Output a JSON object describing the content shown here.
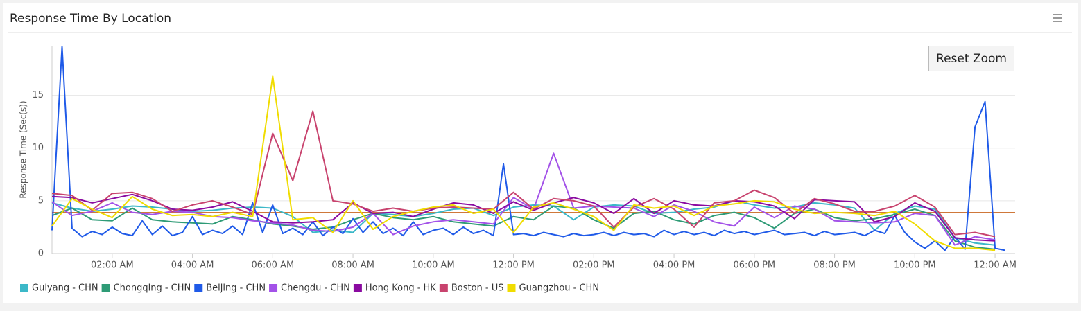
{
  "reset_zoom": "Reset Zoom",
  "chart_data": {
    "type": "line",
    "title": "Response Time By Location",
    "y_label": "Response Time (Sec(s))",
    "xlim": [
      0.5,
      24.5
    ],
    "ylim": [
      0,
      19.7
    ],
    "grid": true,
    "threshold": {
      "value": 3.9,
      "color": "#c8641e"
    },
    "xticks": [
      {
        "value": 2,
        "label": "02:00 AM"
      },
      {
        "value": 4,
        "label": "04:00 AM"
      },
      {
        "value": 6,
        "label": "06:00 AM"
      },
      {
        "value": 8,
        "label": "08:00 AM"
      },
      {
        "value": 10,
        "label": "10:00 AM"
      },
      {
        "value": 12,
        "label": "12:00 PM"
      },
      {
        "value": 14,
        "label": "02:00 PM"
      },
      {
        "value": 16,
        "label": "04:00 PM"
      },
      {
        "value": 18,
        "label": "06:00 PM"
      },
      {
        "value": 20,
        "label": "08:00 PM"
      },
      {
        "value": 22,
        "label": "10:00 PM"
      },
      {
        "value": 24,
        "label": "12:00 AM"
      }
    ],
    "yticks": [
      0,
      5,
      10,
      15
    ],
    "series": [
      {
        "name": "Guiyang - CHN",
        "color": "#3cb8c8",
        "x": [
          0.5,
          1,
          1.5,
          2,
          2.5,
          3,
          3.5,
          4,
          4.5,
          5,
          5.5,
          6,
          6.5,
          7,
          7.5,
          8,
          8.5,
          9,
          9.5,
          10,
          10.5,
          11,
          11.5,
          12,
          12.5,
          13,
          13.5,
          14,
          14.5,
          15,
          15.5,
          16,
          16.5,
          17,
          17.5,
          18,
          18.5,
          19,
          19.5,
          20,
          20.5,
          21,
          21.5,
          22,
          22.5,
          23,
          23.5,
          24
        ],
        "values": [
          4.8,
          4.3,
          4.0,
          4.2,
          4.5,
          4.4,
          4.2,
          4.0,
          4.1,
          4.3,
          4.4,
          4.3,
          3.5,
          2.0,
          2.2,
          2.0,
          3.8,
          3.7,
          3.5,
          3.8,
          4.2,
          4.3,
          3.6,
          4.4,
          4.6,
          4.5,
          3.2,
          4.4,
          4.6,
          4.5,
          3.8,
          3.9,
          4.2,
          4.4,
          5.0,
          4.6,
          4.3,
          4.4,
          4.8,
          4.6,
          4.3,
          2.2,
          3.8,
          4.5,
          4.2,
          1.5,
          1.0,
          0.8
        ]
      },
      {
        "name": "Chongqing - CHN",
        "color": "#2e9b76",
        "x": [
          0.5,
          1,
          1.5,
          2,
          2.5,
          3,
          3.5,
          4,
          4.5,
          5,
          5.5,
          6,
          6.5,
          7,
          7.5,
          8,
          8.5,
          9,
          9.5,
          10,
          10.5,
          11,
          11.5,
          12,
          12.5,
          13,
          13.5,
          14,
          14.5,
          15,
          15.5,
          16,
          16.5,
          17,
          17.5,
          18,
          18.5,
          19,
          19.5,
          20,
          20.5,
          21,
          21.5,
          22,
          22.5,
          23,
          23.5,
          24
        ],
        "values": [
          3.6,
          4.3,
          3.2,
          3.1,
          4.3,
          3.2,
          3.0,
          2.9,
          2.8,
          3.5,
          3.2,
          2.8,
          2.6,
          2.3,
          2.5,
          3.2,
          3.8,
          3.4,
          3.2,
          3.5,
          3.0,
          2.8,
          2.6,
          3.5,
          3.2,
          4.5,
          4.3,
          3.2,
          2.4,
          3.8,
          4.0,
          3.2,
          2.8,
          3.6,
          3.9,
          3.4,
          2.4,
          3.8,
          4.2,
          3.4,
          3.1,
          3.3,
          3.7,
          4.2,
          3.6,
          1.2,
          0.6,
          0.4
        ]
      },
      {
        "name": "Beijing - CHN",
        "color": "#1f5ae8",
        "x": [
          0.5,
          0.75,
          1,
          1.25,
          1.5,
          1.75,
          2,
          2.25,
          2.5,
          2.75,
          3,
          3.25,
          3.5,
          3.75,
          4,
          4.25,
          4.5,
          4.75,
          5,
          5.25,
          5.5,
          5.75,
          6,
          6.25,
          6.5,
          6.75,
          7,
          7.25,
          7.5,
          7.75,
          8,
          8.25,
          8.5,
          8.75,
          9,
          9.25,
          9.5,
          9.75,
          10,
          10.25,
          10.5,
          10.75,
          11,
          11.25,
          11.5,
          11.75,
          12,
          12.25,
          12.5,
          12.75,
          13,
          13.25,
          13.5,
          13.75,
          14,
          14.25,
          14.5,
          14.75,
          15,
          15.25,
          15.5,
          15.75,
          16,
          16.25,
          16.5,
          16.75,
          17,
          17.25,
          17.5,
          17.75,
          18,
          18.25,
          18.5,
          18.75,
          19,
          19.25,
          19.5,
          19.75,
          20,
          20.25,
          20.5,
          20.75,
          21,
          21.25,
          21.5,
          21.75,
          22,
          22.25,
          22.5,
          22.75,
          23,
          23.25,
          23.5,
          23.75,
          24,
          24.25
        ],
        "values": [
          2.2,
          19.6,
          2.4,
          1.6,
          2.1,
          1.8,
          2.5,
          1.9,
          1.7,
          3.1,
          1.8,
          2.6,
          1.7,
          2.0,
          3.5,
          1.8,
          2.2,
          1.9,
          2.6,
          1.8,
          4.8,
          2.0,
          4.6,
          1.9,
          2.4,
          1.8,
          3.0,
          1.7,
          2.5,
          1.9,
          3.3,
          2.0,
          3.0,
          1.9,
          2.4,
          1.7,
          3.0,
          1.8,
          2.2,
          2.4,
          1.8,
          2.5,
          1.9,
          2.2,
          1.7,
          8.5,
          1.8,
          1.9,
          1.7,
          2.0,
          1.8,
          1.6,
          1.9,
          1.7,
          1.8,
          2.0,
          1.7,
          2.0,
          1.8,
          1.9,
          1.6,
          2.2,
          1.8,
          2.1,
          1.8,
          2.0,
          1.7,
          2.2,
          1.9,
          2.1,
          1.8,
          2.0,
          2.2,
          1.8,
          1.9,
          2.0,
          1.7,
          2.1,
          1.8,
          1.9,
          2.0,
          1.7,
          2.2,
          1.9,
          3.6,
          2.0,
          1.1,
          0.5,
          1.2,
          0.3,
          1.6,
          0.4,
          12.0,
          14.4,
          0.5,
          0.3
        ]
      },
      {
        "name": "Chengdu - CHN",
        "color": "#a352e8",
        "x": [
          0.5,
          1,
          1.5,
          2,
          2.5,
          3,
          3.5,
          4,
          4.5,
          5,
          5.5,
          6,
          6.5,
          7,
          7.5,
          8,
          8.5,
          9,
          9.5,
          10,
          10.5,
          11,
          11.5,
          12,
          12.5,
          13,
          13.5,
          14,
          14.5,
          15,
          15.5,
          16,
          16.5,
          17,
          17.5,
          18,
          18.5,
          19,
          19.5,
          20,
          20.5,
          21,
          21.5,
          22,
          22.5,
          23,
          23.5,
          24
        ],
        "values": [
          4.9,
          3.6,
          4.0,
          4.8,
          3.9,
          3.7,
          4.0,
          3.9,
          3.5,
          3.4,
          3.1,
          2.9,
          2.7,
          2.2,
          2.1,
          2.5,
          3.8,
          1.8,
          2.6,
          3.0,
          3.2,
          3.0,
          2.8,
          5.3,
          4.2,
          9.5,
          4.3,
          4.5,
          4.4,
          4.3,
          3.5,
          4.6,
          4.0,
          3.0,
          2.6,
          4.4,
          3.4,
          4.5,
          4.2,
          3.1,
          3.0,
          2.9,
          3.0,
          3.8,
          3.6,
          0.8,
          1.6,
          1.3
        ]
      },
      {
        "name": "Hong Kong - HK",
        "color": "#8a0aa0",
        "x": [
          0.5,
          1,
          1.5,
          2,
          2.5,
          3,
          3.5,
          4,
          4.5,
          5,
          5.5,
          6,
          6.5,
          7,
          7.5,
          8,
          8.5,
          9,
          9.5,
          10,
          10.5,
          11,
          11.5,
          12,
          12.5,
          13,
          13.5,
          14,
          14.5,
          15,
          15.5,
          16,
          16.5,
          17,
          17.5,
          18,
          18.5,
          19,
          19.5,
          20,
          20.5,
          21,
          21.5,
          22,
          22.5,
          23,
          23.5,
          24
        ],
        "values": [
          5.4,
          5.3,
          4.8,
          5.2,
          5.6,
          5.0,
          4.2,
          4.1,
          4.4,
          4.9,
          4.0,
          3.0,
          2.9,
          3.0,
          3.2,
          4.8,
          3.8,
          3.9,
          3.5,
          4.2,
          4.8,
          4.6,
          3.8,
          4.9,
          4.1,
          4.8,
          5.3,
          4.8,
          3.8,
          5.2,
          3.8,
          5.0,
          4.6,
          4.5,
          5.0,
          4.9,
          4.5,
          3.3,
          5.1,
          5.0,
          4.9,
          3.0,
          3.5,
          4.8,
          4.0,
          1.5,
          1.3,
          1.2
        ]
      },
      {
        "name": "Boston - US",
        "color": "#c8436e",
        "x": [
          0.5,
          1,
          1.5,
          2,
          2.5,
          3,
          3.5,
          4,
          4.5,
          5,
          5.5,
          6,
          6.5,
          7,
          7.5,
          8,
          8.5,
          9,
          9.5,
          10,
          10.5,
          11,
          11.5,
          12,
          12.5,
          13,
          13.5,
          14,
          14.5,
          15,
          15.5,
          16,
          16.5,
          17,
          17.5,
          18,
          18.5,
          19,
          19.5,
          20,
          20.5,
          21,
          21.5,
          22,
          22.5,
          23,
          23.5,
          24
        ],
        "values": [
          5.7,
          5.5,
          4.1,
          5.7,
          5.8,
          5.2,
          4.0,
          4.6,
          5.0,
          4.4,
          3.7,
          11.4,
          6.9,
          13.5,
          5.0,
          4.7,
          4.0,
          4.3,
          4.0,
          4.3,
          4.4,
          4.3,
          4.2,
          5.8,
          4.2,
          5.2,
          5.0,
          4.5,
          2.5,
          4.4,
          5.2,
          4.2,
          2.5,
          4.8,
          5.0,
          6.0,
          5.3,
          3.8,
          5.2,
          4.7,
          4.0,
          4.0,
          4.5,
          5.5,
          4.4,
          1.8,
          2.0,
          1.6
        ]
      },
      {
        "name": "Guangzhou - CHN",
        "color": "#f0dc00",
        "x": [
          0.5,
          1,
          1.5,
          2,
          2.5,
          3,
          3.5,
          4,
          4.5,
          5,
          5.5,
          6,
          6.5,
          7,
          7.5,
          8,
          8.5,
          9,
          9.5,
          10,
          10.5,
          11,
          11.5,
          12,
          12.5,
          13,
          13.5,
          14,
          14.5,
          15,
          15.5,
          16,
          16.5,
          17,
          17.5,
          18,
          18.5,
          19,
          19.5,
          20,
          20.5,
          21,
          21.5,
          22,
          22.5,
          23,
          23.5,
          24
        ],
        "values": [
          2.6,
          5.2,
          4.2,
          3.4,
          5.4,
          4.2,
          3.6,
          3.7,
          3.5,
          3.9,
          3.5,
          16.8,
          3.2,
          3.4,
          2.0,
          5.0,
          2.3,
          3.5,
          4.0,
          4.4,
          4.6,
          3.8,
          4.2,
          2.0,
          4.4,
          4.8,
          4.2,
          3.5,
          2.2,
          4.6,
          4.3,
          4.5,
          3.6,
          4.5,
          4.7,
          5.0,
          4.9,
          4.2,
          3.8,
          3.9,
          3.8,
          3.6,
          4.0,
          2.8,
          1.2,
          0.5,
          0.5,
          0.3
        ]
      }
    ]
  }
}
